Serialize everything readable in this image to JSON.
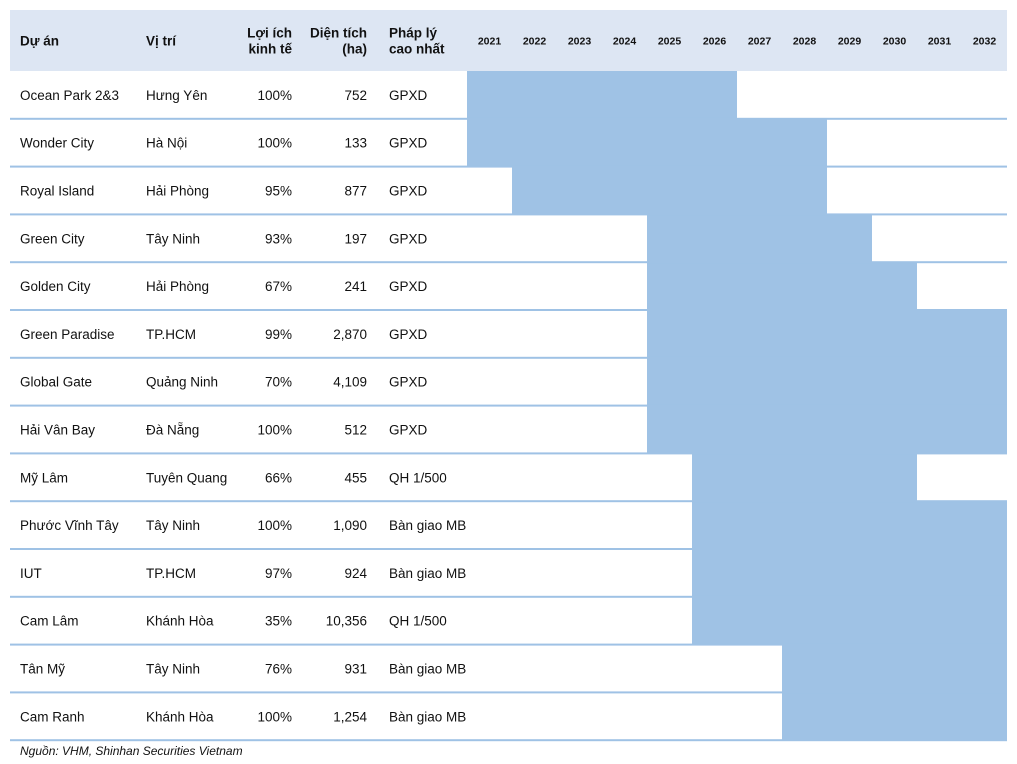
{
  "chart_data": {
    "type": "table",
    "columns": [
      "Dự án",
      "Vị trí",
      [
        "Lợi ích",
        "kinh tế"
      ],
      [
        "Diện tích",
        "(ha)"
      ],
      [
        "Pháp lý",
        "cao nhất"
      ]
    ],
    "years": [
      "2021",
      "2022",
      "2023",
      "2024",
      "2025",
      "2026",
      "2027",
      "2028",
      "2029",
      "2030",
      "2031",
      "2032"
    ],
    "rows": [
      {
        "project": "Ocean Park 2&3",
        "location": "Hưng Yên",
        "benefit": "100%",
        "area": "752",
        "legal": "GPXD",
        "start": 2021,
        "end": 2026
      },
      {
        "project": "Wonder City",
        "location": "Hà Nội",
        "benefit": "100%",
        "area": "133",
        "legal": "GPXD",
        "start": 2021,
        "end": 2028
      },
      {
        "project": "Royal Island",
        "location": "Hải Phòng",
        "benefit": "95%",
        "area": "877",
        "legal": "GPXD",
        "start": 2022,
        "end": 2028
      },
      {
        "project": "Green City",
        "location": "Tây Ninh",
        "benefit": "93%",
        "area": "197",
        "legal": "GPXD",
        "start": 2025,
        "end": 2029
      },
      {
        "project": "Golden City",
        "location": "Hải Phòng",
        "benefit": "67%",
        "area": "241",
        "legal": "GPXD",
        "start": 2025,
        "end": 2030
      },
      {
        "project": "Green Paradise",
        "location": "TP.HCM",
        "benefit": "99%",
        "area": "2,870",
        "legal": "GPXD",
        "start": 2025,
        "end": 2032
      },
      {
        "project": "Global Gate",
        "location": "Quảng Ninh",
        "benefit": "70%",
        "area": "4,109",
        "legal": "GPXD",
        "start": 2025,
        "end": 2032
      },
      {
        "project": "Hải Vân Bay",
        "location": "Đà Nẵng",
        "benefit": "100%",
        "area": "512",
        "legal": "GPXD",
        "start": 2025,
        "end": 2032
      },
      {
        "project": "Mỹ Lâm",
        "location": "Tuyên Quang",
        "benefit": "66%",
        "area": "455",
        "legal": "QH 1/500",
        "start": 2026,
        "end": 2030
      },
      {
        "project": "Phước Vĩnh Tây",
        "location": "Tây Ninh",
        "benefit": "100%",
        "area": "1,090",
        "legal": "Bàn giao MB",
        "start": 2026,
        "end": 2032
      },
      {
        "project": "IUT",
        "location": "TP.HCM",
        "benefit": "97%",
        "area": "924",
        "legal": "Bàn giao MB",
        "start": 2026,
        "end": 2032
      },
      {
        "project": "Cam Lâm",
        "location": "Khánh Hòa",
        "benefit": "35%",
        "area": "10,356",
        "legal": "QH 1/500",
        "start": 2026,
        "end": 2032
      },
      {
        "project": "Tân Mỹ",
        "location": "Tây Ninh",
        "benefit": "76%",
        "area": "931",
        "legal": "Bàn giao MB",
        "start": 2028,
        "end": 2032
      },
      {
        "project": "Cam Ranh",
        "location": "Khánh Hòa",
        "benefit": "100%",
        "area": "1,254",
        "legal": "Bàn giao MB",
        "start": 2028,
        "end": 2032
      }
    ],
    "colors": {
      "header": "#dde6f3",
      "bar": "#9fc2e5",
      "line": "#9fc2e5"
    }
  },
  "source": "Nguồn: VHM, Shinhan Securities Vietnam"
}
